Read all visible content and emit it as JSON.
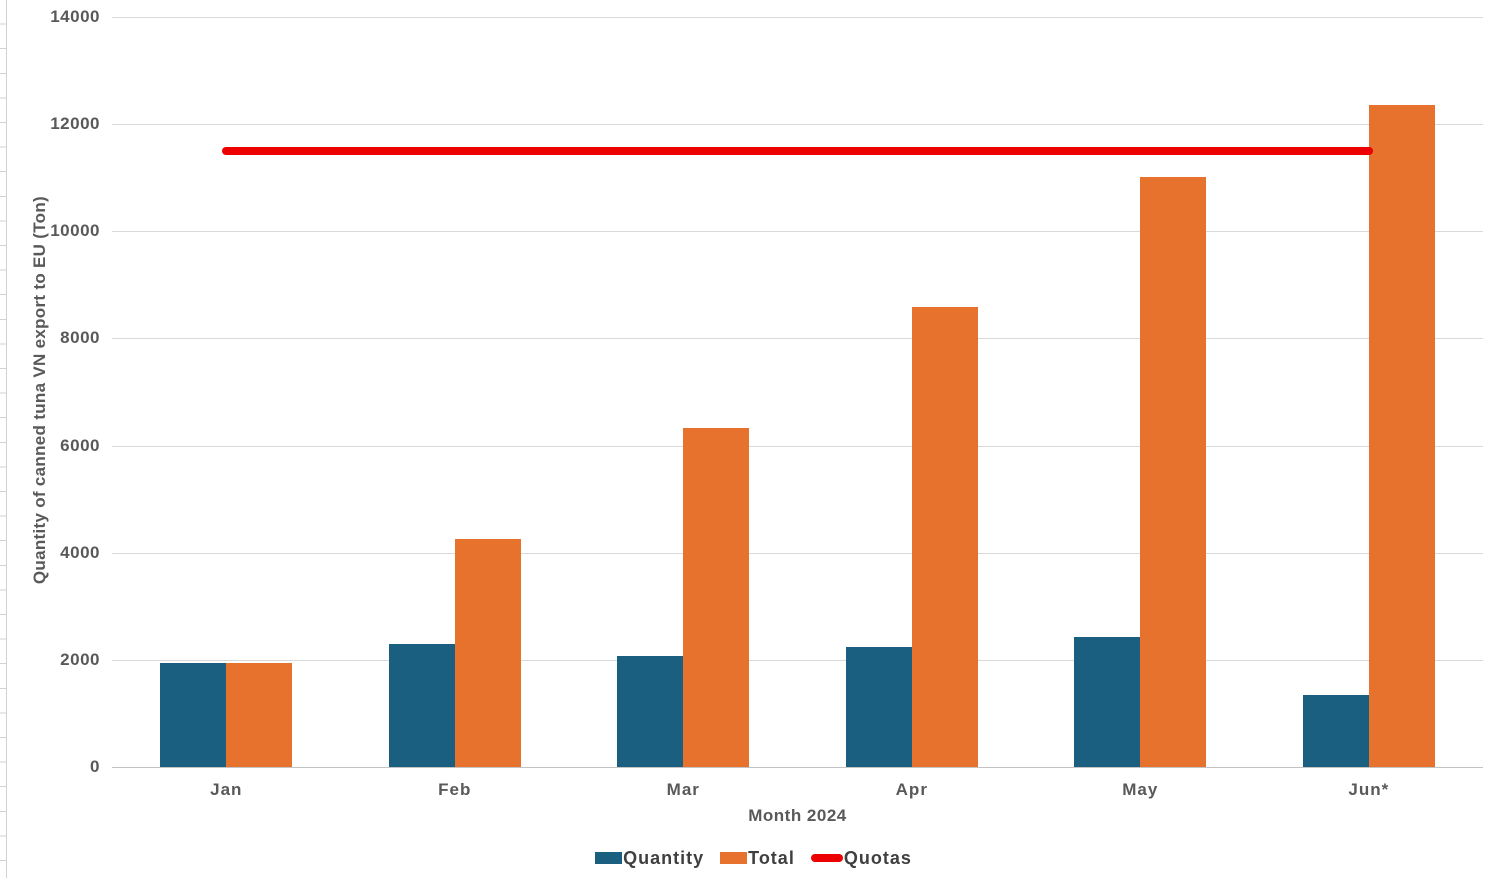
{
  "chart_data": {
    "type": "bar",
    "categories": [
      "Jan",
      "Feb",
      "Mar",
      "Apr",
      "May",
      "Jun*"
    ],
    "series": [
      {
        "name": "Quantity",
        "type": "bar",
        "color": "#1b5f80",
        "values": [
          1950,
          2300,
          2080,
          2250,
          2430,
          1350
        ]
      },
      {
        "name": "Total",
        "type": "bar",
        "color": "#e7722e",
        "values": [
          1950,
          4250,
          6330,
          8580,
          11010,
          12360
        ]
      },
      {
        "name": "Quotas",
        "type": "line",
        "color": "#ec0000",
        "values": [
          11500,
          11500,
          11500,
          11500,
          11500,
          11500
        ]
      }
    ],
    "title": "",
    "xlabel": "Month 2024",
    "ylabel": "Quantity of canned tuna VN export to EU (Ton)",
    "ylim": [
      0,
      14000
    ],
    "yticks": [
      0,
      2000,
      4000,
      6000,
      8000,
      10000,
      12000,
      14000
    ],
    "grid": true,
    "legend_position": "bottom",
    "quota_value": 11500,
    "colors": {
      "quantity_bar": "#1b5f80",
      "total_bar": "#e7722e",
      "quotas_line": "#ec0000",
      "gridline": "#d9d9d9",
      "axis_text": "#595959",
      "legend_text": "#3f3f3f"
    }
  }
}
